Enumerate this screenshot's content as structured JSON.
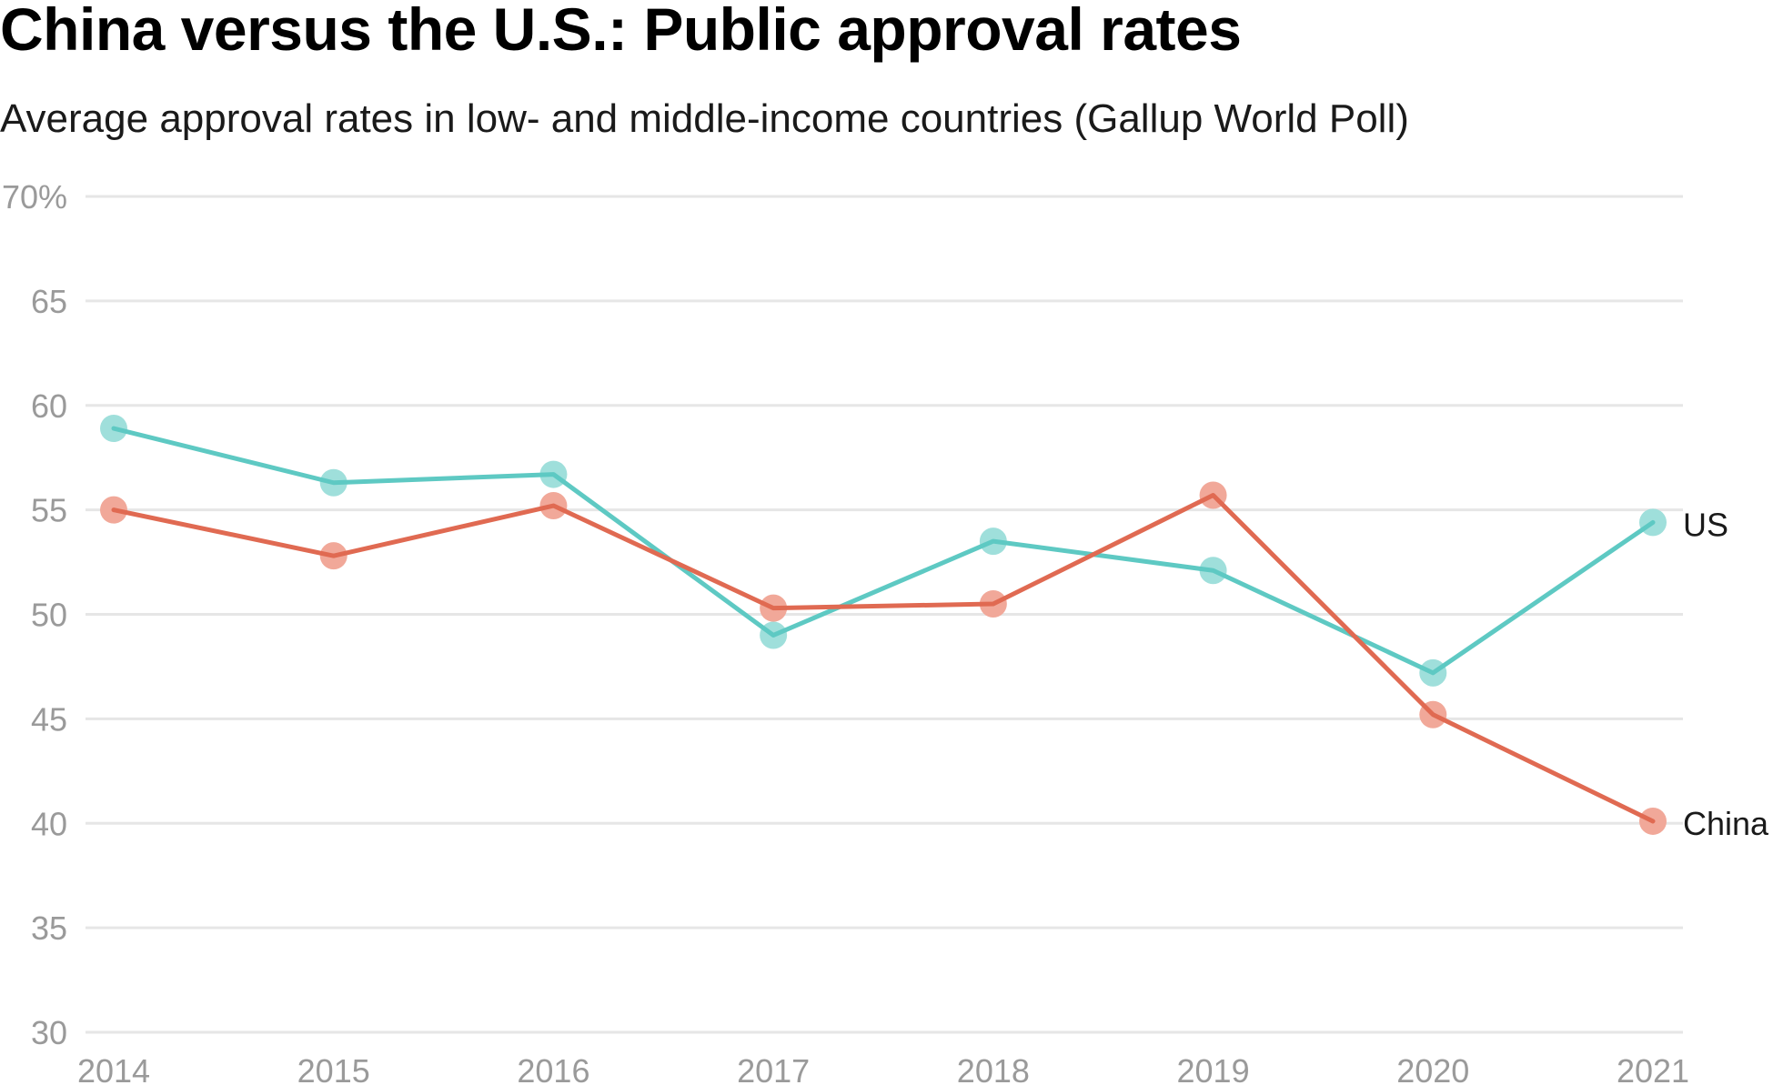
{
  "title": "China versus the U.S.: Public approval rates",
  "subtitle": "Average approval rates in low- and middle-income countries (Gallup World Poll)",
  "colors": {
    "us": "#5ec9c3",
    "us_point": "#9fdfdb",
    "china": "#e06a52",
    "china_point": "#f1a899",
    "grid": "#e6e6e6",
    "tick": "#9a9a9a"
  },
  "chart_data": {
    "type": "line",
    "title": "China versus the U.S.: Public approval rates",
    "subtitle": "Average approval rates in low- and middle-income countries (Gallup World Poll)",
    "x": [
      "2014",
      "2015",
      "2016",
      "2017",
      "2018",
      "2019",
      "2020",
      "2021"
    ],
    "y_ticks": [
      30,
      35,
      40,
      45,
      50,
      55,
      60,
      65,
      70
    ],
    "y_tick_labels": [
      "30",
      "35",
      "40",
      "45",
      "50",
      "55",
      "60",
      "65",
      "70%"
    ],
    "ylim": [
      30,
      70
    ],
    "grid": true,
    "legend": "direct labels at line ends",
    "series": [
      {
        "name": "US",
        "key": "us",
        "values": [
          58.9,
          56.3,
          56.7,
          49.0,
          53.5,
          52.1,
          47.2,
          54.4
        ]
      },
      {
        "name": "China",
        "key": "china",
        "values": [
          55.0,
          52.8,
          55.2,
          50.3,
          50.5,
          55.7,
          45.2,
          40.1
        ]
      }
    ]
  }
}
